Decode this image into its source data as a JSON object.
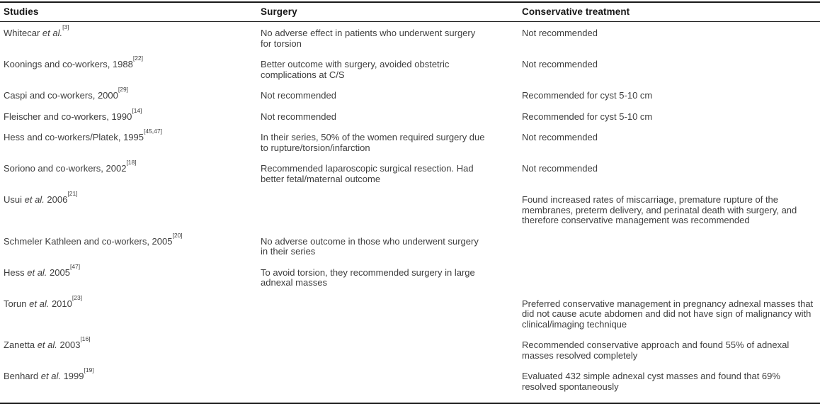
{
  "table": {
    "columns": [
      {
        "label": "Studies"
      },
      {
        "label": "Surgery"
      },
      {
        "label": "Conservative treatment"
      }
    ],
    "rows": [
      {
        "study": {
          "pre": "Whitecar ",
          "it": "et al.",
          "post": "",
          "ref": "[3]"
        },
        "surgery": "No adverse effect in patients who underwent surgery for torsion",
        "conservative": "Not recommended"
      },
      {
        "study": {
          "pre": "Koonings and co-workers, 1988",
          "it": "",
          "post": "",
          "ref": "[22]"
        },
        "surgery": "Better outcome with surgery, avoided obstetric complications at C/S",
        "conservative": "Not recommended"
      },
      {
        "study": {
          "pre": "Caspi and co-workers, 2000",
          "it": "",
          "post": "",
          "ref": "[29]"
        },
        "surgery": "Not recommended",
        "conservative": "Recommended for cyst 5-10 cm"
      },
      {
        "study": {
          "pre": "Fleischer and co-workers, 1990",
          "it": "",
          "post": "",
          "ref": "[14]"
        },
        "surgery": "Not recommended",
        "conservative": "Recommended for cyst 5-10 cm"
      },
      {
        "study": {
          "pre": "Hess and co-workers/Platek, 1995",
          "it": "",
          "post": "",
          "ref": "[45,47]"
        },
        "surgery": "In their series, 50% of the women required surgery due to rupture/torsion/infarction",
        "conservative": "Not recommended"
      },
      {
        "study": {
          "pre": "Soriono and co-workers, 2002",
          "it": "",
          "post": "",
          "ref": "[18]"
        },
        "surgery": "Recommended laparoscopic surgical resection. Had better fetal/maternal outcome",
        "conservative": "Not recommended"
      },
      {
        "study": {
          "pre": "Usui ",
          "it": "et al.",
          "post": " 2006",
          "ref": "[21]"
        },
        "surgery": "",
        "conservative": "Found increased rates of miscarriage, premature rupture of the membranes, preterm delivery, and perinatal death with surgery, and therefore conservative management was recommended"
      },
      {
        "study": {
          "pre": "Schmeler Kathleen and co-workers, 2005",
          "it": "",
          "post": "",
          "ref": "[20]"
        },
        "surgery": "No adverse outcome in those who underwent surgery in their series",
        "conservative": ""
      },
      {
        "study": {
          "pre": "Hess ",
          "it": "et al.",
          "post": " 2005",
          "ref": "[47]"
        },
        "surgery": "To avoid torsion, they recommended surgery in large adnexal masses",
        "conservative": ""
      },
      {
        "study": {
          "pre": "Torun ",
          "it": "et al.",
          "post": " 2010",
          "ref": "[23]"
        },
        "surgery": "",
        "conservative": "Preferred conservative management in pregnancy adnexal masses that did not cause acute abdomen and did not have sign of malignancy with clinical/imaging technique"
      },
      {
        "study": {
          "pre": "Zanetta ",
          "it": "et al.",
          "post": " 2003",
          "ref": "[16]"
        },
        "surgery": "",
        "conservative": "Recommended conservative approach and found 55% of adnexal masses resolved completely"
      },
      {
        "study": {
          "pre": "Benhard ",
          "it": "et al.",
          "post": " 1999",
          "ref": "[19]"
        },
        "surgery": "",
        "conservative": "Evaluated 432 simple adnexal cyst masses and found that 69% resolved spontaneously"
      }
    ]
  },
  "colors": {
    "background": "#ffffff",
    "text": "#3e3e3e",
    "heading": "#161616",
    "border": "#1a1a1a"
  }
}
